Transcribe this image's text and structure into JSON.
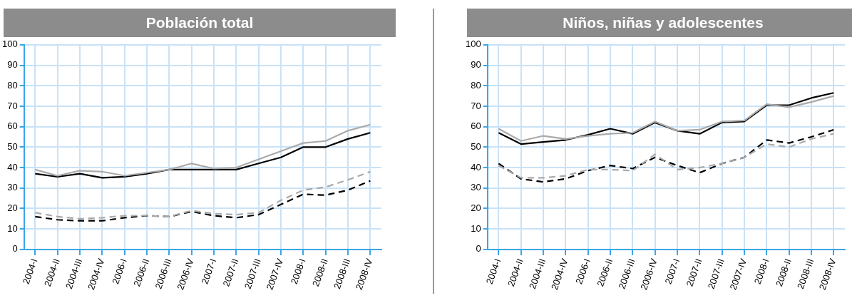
{
  "chart_data": [
    {
      "type": "line",
      "title": "Población total",
      "categories": [
        "2004-I",
        "2004-II",
        "2004-III",
        "2004-IV",
        "2006-I",
        "2006-II",
        "2006-III",
        "2006-IV",
        "2007-I",
        "2007-II",
        "2007-III",
        "2007-IV",
        "2008-I",
        "2008-II",
        "2008-III",
        "2008-IV"
      ],
      "ylim": [
        0,
        100
      ],
      "yticks": [
        0,
        10,
        20,
        30,
        40,
        50,
        60,
        70,
        80,
        90,
        100
      ],
      "grid": true,
      "marker": "none",
      "series": [
        {
          "color": "#aaaaaa",
          "line_style": "solid",
          "values": [
            39,
            36,
            38.5,
            38,
            36,
            37.5,
            39,
            42,
            39.5,
            40,
            44,
            48,
            52,
            53,
            58,
            61
          ]
        },
        {
          "color": "#000000",
          "line_style": "solid",
          "values": [
            37,
            35.5,
            37,
            35,
            35.5,
            37,
            39,
            39,
            39,
            39,
            42,
            45,
            50,
            50,
            54,
            57
          ]
        },
        {
          "color": "#aaaaaa",
          "line_style": "dashed",
          "values": [
            18,
            16,
            15,
            15.5,
            16.5,
            16.5,
            16,
            19,
            17.5,
            17,
            18,
            24,
            29,
            30.5,
            34,
            38
          ]
        },
        {
          "color": "#000000",
          "line_style": "dashed",
          "values": [
            16,
            14.5,
            14,
            14,
            15.5,
            16.5,
            16,
            18.5,
            16.5,
            15.5,
            17,
            22,
            27,
            26.5,
            29,
            33.5
          ]
        }
      ]
    },
    {
      "type": "line",
      "title": "Niños, niñas y adolescentes",
      "categories": [
        "2004-I",
        "2004-II",
        "2004-III",
        "2004-IV",
        "2006-I",
        "2006-II",
        "2006-III",
        "2006-IV",
        "2007-I",
        "2007-II",
        "2007-III",
        "2007-IV",
        "2008-I",
        "2008-II",
        "2008-III",
        "2008-IV"
      ],
      "ylim": [
        0,
        100
      ],
      "yticks": [
        0,
        10,
        20,
        30,
        40,
        50,
        60,
        70,
        80,
        90,
        100
      ],
      "grid": true,
      "marker": "none",
      "series": [
        {
          "color": "#aaaaaa",
          "line_style": "solid",
          "values": [
            59,
            53,
            55.5,
            54,
            55.5,
            56.5,
            57,
            62.5,
            58,
            58.5,
            62.5,
            63,
            71,
            69.5,
            72,
            75
          ]
        },
        {
          "color": "#000000",
          "line_style": "solid",
          "values": [
            57,
            51.5,
            52.5,
            53.5,
            56,
            59,
            56.5,
            62,
            58,
            56.5,
            62,
            62.5,
            70.5,
            70.5,
            74,
            76.5
          ]
        },
        {
          "color": "#aaaaaa",
          "line_style": "dashed",
          "values": [
            41,
            35,
            35,
            36,
            39,
            39,
            38.5,
            46.5,
            39,
            40,
            42,
            45,
            51.5,
            50,
            54,
            56.5
          ]
        },
        {
          "color": "#000000",
          "line_style": "dashed",
          "values": [
            42,
            34.5,
            33,
            34.5,
            38.5,
            41,
            39.5,
            45,
            41,
            37.5,
            42,
            45,
            53.5,
            52,
            55,
            58.5
          ]
        }
      ]
    }
  ]
}
